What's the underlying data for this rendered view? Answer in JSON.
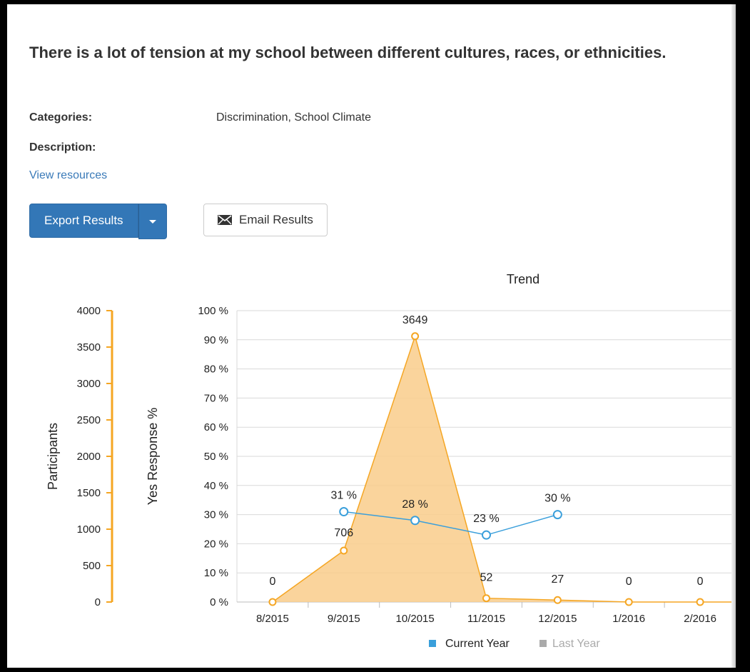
{
  "question": "There is a lot of tension at my school between different cultures, races, or ethnicities.",
  "categories_label": "Categories:",
  "categories_value": "Discrimination, School Climate",
  "description_label": "Description:",
  "view_resources_label": "View resources",
  "export_button_label": "Export Results",
  "email_button_label": "Email Results",
  "icons": {
    "export_dropdown": "caret-down-icon",
    "email": "envelope-icon"
  },
  "colors": {
    "primary": "#3377b7",
    "participants": "#f5a623",
    "current_year": "#3a9fdb",
    "last_year": "#aaaaaa"
  },
  "chart_data": {
    "type": "area",
    "title": "Trend",
    "categories": [
      "8/2015",
      "9/2015",
      "10/2015",
      "11/2015",
      "12/2015",
      "1/2016",
      "2/2016"
    ],
    "y_left_label": "Participants",
    "y_left_range": [
      0,
      4000
    ],
    "y_left_ticks": [
      "0",
      "500",
      "1000",
      "1500",
      "2000",
      "2500",
      "3000",
      "3500",
      "4000"
    ],
    "y_right_label": "Yes Response %",
    "y_right_range": [
      0,
      100
    ],
    "y_right_ticks": [
      "0 %",
      "10 %",
      "20 %",
      "30 %",
      "40 %",
      "50 %",
      "60 %",
      "70 %",
      "80 %",
      "90 %",
      "100 %"
    ],
    "grid": true,
    "legend_position": "bottom",
    "series": [
      {
        "name": "Participants",
        "type": "area",
        "axis": "left",
        "values": [
          0,
          706,
          3649,
          52,
          27,
          0,
          0
        ],
        "labels": [
          "0",
          "706",
          "3649",
          "52",
          "27",
          "0",
          "0"
        ]
      },
      {
        "name": "Current Year",
        "type": "line",
        "axis": "right",
        "values": [
          null,
          31,
          28,
          23,
          30,
          null,
          null
        ],
        "labels": [
          "",
          "31 %",
          "28 %",
          "23 %",
          "30 %",
          "",
          ""
        ]
      }
    ],
    "legend": [
      {
        "name": "Current Year",
        "color": "#3a9fdb"
      },
      {
        "name": "Last Year",
        "color": "#aaaaaa"
      }
    ]
  }
}
